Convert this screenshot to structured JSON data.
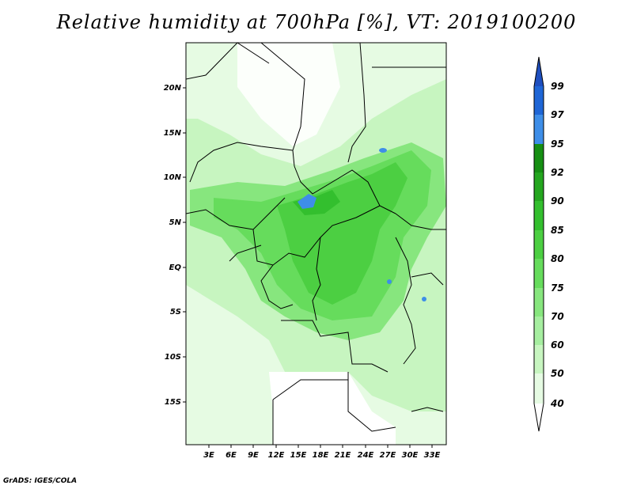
{
  "title": "Relative humidity at 700hPa [%], VT: 2019100200",
  "credit": "GrADS: IGES/COLA",
  "map": {
    "lat_labels": [
      "20N",
      "15N",
      "10N",
      "5N",
      "EQ",
      "5S",
      "10S",
      "15S"
    ],
    "lon_labels": [
      "3E",
      "6E",
      "9E",
      "12E",
      "15E",
      "18E",
      "21E",
      "24E",
      "27E",
      "30E",
      "33E"
    ]
  },
  "colorbar": {
    "levels": [
      "40",
      "50",
      "60",
      "70",
      "75",
      "80",
      "85",
      "90",
      "92",
      "95",
      "97",
      "99"
    ],
    "colors": [
      "#ffffff",
      "#e6fbe3",
      "#c7f5c0",
      "#a6eea0",
      "#87e67e",
      "#66dc5c",
      "#4ccf42",
      "#33bf2e",
      "#24a61f",
      "#168f13",
      "#3e8ee8",
      "#1f66d6",
      "#1e4fbf"
    ]
  }
}
